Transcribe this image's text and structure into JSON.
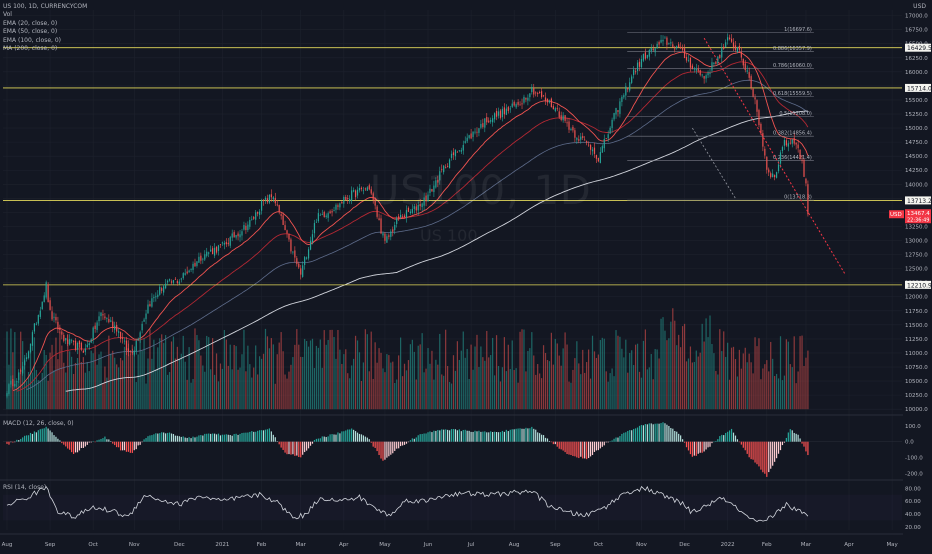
{
  "header": {
    "symbol_line": "US 100, 1D, CURRENCYCOM",
    "indicators": [
      "Vol",
      "EMA (20, close, 0)",
      "EMA (50, close, 0)",
      "EMA (100, close, 0)",
      "MA (200, close, 0)"
    ],
    "currency": "USD"
  },
  "watermark": {
    "main": "US100, 1D",
    "sub": "US 100"
  },
  "colors": {
    "background": "#131722",
    "up": "#26a69a",
    "down": "#ef5350",
    "ema20": "#ef5350",
    "ema50": "#b22833",
    "ema100": "#5d6b8a",
    "ma200": "#d1d4dc",
    "hline": "#e3d95b",
    "fib": "#787b86",
    "axis_text": "#b2b5be",
    "price_tag": "#f23645"
  },
  "chart_data": [
    {
      "type": "candlestick",
      "title": "US 100, 1D, CURRENCYCOM",
      "y_ticks": [
        17000,
        16750,
        16500,
        16250,
        16000,
        15750,
        15500,
        15250,
        15000,
        14750,
        14500,
        14250,
        14000,
        13750,
        13500,
        13250,
        13000,
        12750,
        12500,
        12250,
        12000,
        11750,
        11500,
        11250,
        11000,
        10750,
        10500,
        10250,
        10000
      ],
      "y_tick_labels": [
        "17000.0",
        "16750.0",
        "16500.0",
        "16250.0",
        "16000.0",
        "15750.0",
        "15500.0",
        "15250.0",
        "15000.0",
        "14750.0",
        "14500.0",
        "14250.0",
        "14000.0",
        "13750.0",
        "13500.0",
        "13250.0",
        "13000.0",
        "12750.0",
        "12500.0",
        "12250.0",
        "12000.0",
        "11750.0",
        "11500.0",
        "11250.0",
        "11000.0",
        "10750.0",
        "10500.0",
        "10250.0",
        "10000.0"
      ],
      "ylim": [
        9950,
        17100
      ],
      "x_ticks": [
        "Aug",
        "Sep",
        "Oct",
        "Nov",
        "Dec",
        "2021",
        "Feb",
        "Mar",
        "Apr",
        "May",
        "Jun",
        "Jul",
        "Aug",
        "Sep",
        "Oct",
        "Nov",
        "Dec",
        "2022",
        "Feb",
        "Mar",
        "Apr",
        "May"
      ],
      "x_tick_pos": [
        0,
        22,
        44,
        65,
        88,
        110,
        130,
        150,
        172,
        193,
        215,
        237,
        259,
        280,
        302,
        324,
        346,
        368,
        388,
        408,
        430,
        452
      ],
      "bars_range": [
        0,
        410
      ],
      "price_path": [
        [
          0,
          10350
        ],
        [
          8,
          10700
        ],
        [
          20,
          12200
        ],
        [
          22,
          11700
        ],
        [
          30,
          11200
        ],
        [
          40,
          11050
        ],
        [
          48,
          11700
        ],
        [
          56,
          11450
        ],
        [
          62,
          11000
        ],
        [
          65,
          11100
        ],
        [
          72,
          11850
        ],
        [
          80,
          12200
        ],
        [
          88,
          12300
        ],
        [
          100,
          12750
        ],
        [
          110,
          12900
        ],
        [
          125,
          13350
        ],
        [
          130,
          13650
        ],
        [
          136,
          13800
        ],
        [
          145,
          12850
        ],
        [
          150,
          12400
        ],
        [
          158,
          13400
        ],
        [
          168,
          13600
        ],
        [
          175,
          13800
        ],
        [
          185,
          13950
        ],
        [
          193,
          12950
        ],
        [
          200,
          13400
        ],
        [
          208,
          13550
        ],
        [
          215,
          13800
        ],
        [
          225,
          14400
        ],
        [
          235,
          14800
        ],
        [
          245,
          15150
        ],
        [
          255,
          15300
        ],
        [
          262,
          15450
        ],
        [
          268,
          15700
        ],
        [
          275,
          15500
        ],
        [
          280,
          15350
        ],
        [
          290,
          14900
        ],
        [
          300,
          14600
        ],
        [
          302,
          14450
        ],
        [
          310,
          15200
        ],
        [
          320,
          16000
        ],
        [
          326,
          16300
        ],
        [
          336,
          16550
        ],
        [
          342,
          16450
        ],
        [
          350,
          16100
        ],
        [
          356,
          15900
        ],
        [
          362,
          16200
        ],
        [
          368,
          16550
        ],
        [
          374,
          16400
        ],
        [
          382,
          15500
        ],
        [
          388,
          14300
        ],
        [
          392,
          14100
        ],
        [
          396,
          14700
        ],
        [
          402,
          14800
        ],
        [
          406,
          14400
        ],
        [
          410,
          13500
        ]
      ],
      "last_price": 13467.4,
      "last_price_label": "13467.4",
      "countdown_label": "22:36:49",
      "price_tag_label": "USD",
      "horizontal_levels": [
        {
          "value": 16429.5,
          "label": "16429.5"
        },
        {
          "value": 15714.0,
          "label": "15714.0"
        },
        {
          "value": 13713.2,
          "label": "13713.2"
        },
        {
          "value": 12210.9,
          "label": "12210.9"
        }
      ],
      "fib_levels": [
        {
          "ratio": "1",
          "value": 16697.6,
          "label": "1(16697.6)"
        },
        {
          "ratio": "0.886",
          "value": 16357.9,
          "label": "0.886(16357.9)"
        },
        {
          "ratio": "0.786",
          "value": 16060.0,
          "label": "0.786(16060.0)"
        },
        {
          "ratio": "0.618",
          "value": 15559.5,
          "label": "0.618(15559.5)"
        },
        {
          "ratio": "0.5",
          "value": 15208.0,
          "label": "0.5(15208.0)"
        },
        {
          "ratio": "0.382",
          "value": 14856.4,
          "label": "0.382(14856.4)"
        },
        {
          "ratio": "0.236",
          "value": 14421.4,
          "label": "0.236(14421.4)"
        },
        {
          "ratio": "0",
          "value": 13718.3,
          "label": "0(13718.3)"
        }
      ],
      "fib_x_range": [
        378,
        410
      ],
      "trendline": {
        "from": [
          356,
          16600
        ],
        "to": [
          428,
          12400
        ]
      },
      "channel_line": {
        "from": [
          350,
          15000
        ],
        "to": [
          372,
          13750
        ]
      },
      "volume_present": true
    },
    {
      "type": "histogram",
      "title": "MACD (12, 26, close, 0)",
      "y_ticks": [
        100.0,
        0.0,
        -100.0,
        -200.0
      ],
      "y_tick_labels": [
        "100.0",
        "0.0",
        "-100.0",
        "-200.0"
      ],
      "ylim": [
        -230,
        150
      ],
      "profile": [
        [
          0,
          -20
        ],
        [
          10,
          40
        ],
        [
          20,
          90
        ],
        [
          26,
          20
        ],
        [
          34,
          -80
        ],
        [
          42,
          -10
        ],
        [
          50,
          30
        ],
        [
          58,
          -50
        ],
        [
          64,
          -70
        ],
        [
          72,
          40
        ],
        [
          82,
          60
        ],
        [
          92,
          20
        ],
        [
          102,
          50
        ],
        [
          114,
          40
        ],
        [
          124,
          60
        ],
        [
          134,
          80
        ],
        [
          142,
          -70
        ],
        [
          150,
          -100
        ],
        [
          158,
          20
        ],
        [
          168,
          50
        ],
        [
          176,
          80
        ],
        [
          184,
          30
        ],
        [
          192,
          -120
        ],
        [
          200,
          -40
        ],
        [
          210,
          40
        ],
        [
          222,
          80
        ],
        [
          234,
          70
        ],
        [
          246,
          60
        ],
        [
          256,
          70
        ],
        [
          268,
          90
        ],
        [
          276,
          20
        ],
        [
          286,
          -80
        ],
        [
          296,
          -110
        ],
        [
          306,
          -10
        ],
        [
          316,
          60
        ],
        [
          326,
          110
        ],
        [
          336,
          120
        ],
        [
          344,
          40
        ],
        [
          350,
          -100
        ],
        [
          356,
          -60
        ],
        [
          364,
          30
        ],
        [
          370,
          80
        ],
        [
          378,
          -80
        ],
        [
          384,
          -160
        ],
        [
          388,
          -220
        ],
        [
          394,
          -80
        ],
        [
          400,
          80
        ],
        [
          404,
          40
        ],
        [
          410,
          -110
        ]
      ]
    },
    {
      "type": "line",
      "title": "RSI (14, close)",
      "y_ticks": [
        80.0,
        60.0,
        40.0,
        20.0
      ],
      "y_tick_labels": [
        "80.00",
        "60.00",
        "40.00",
        "20.00"
      ],
      "ylim": [
        15,
        90
      ],
      "profile": [
        [
          0,
          55
        ],
        [
          10,
          65
        ],
        [
          20,
          82
        ],
        [
          26,
          45
        ],
        [
          34,
          35
        ],
        [
          44,
          50
        ],
        [
          54,
          45
        ],
        [
          62,
          35
        ],
        [
          70,
          70
        ],
        [
          78,
          62
        ],
        [
          88,
          55
        ],
        [
          98,
          68
        ],
        [
          110,
          60
        ],
        [
          120,
          66
        ],
        [
          130,
          70
        ],
        [
          138,
          58
        ],
        [
          146,
          35
        ],
        [
          152,
          38
        ],
        [
          160,
          66
        ],
        [
          170,
          60
        ],
        [
          180,
          66
        ],
        [
          190,
          45
        ],
        [
          196,
          38
        ],
        [
          204,
          62
        ],
        [
          214,
          60
        ],
        [
          224,
          70
        ],
        [
          236,
          72
        ],
        [
          246,
          70
        ],
        [
          258,
          73
        ],
        [
          268,
          76
        ],
        [
          276,
          55
        ],
        [
          286,
          42
        ],
        [
          296,
          38
        ],
        [
          306,
          52
        ],
        [
          316,
          74
        ],
        [
          326,
          80
        ],
        [
          334,
          70
        ],
        [
          344,
          58
        ],
        [
          350,
          42
        ],
        [
          358,
          55
        ],
        [
          366,
          65
        ],
        [
          374,
          45
        ],
        [
          380,
          30
        ],
        [
          386,
          26
        ],
        [
          392,
          40
        ],
        [
          398,
          55
        ],
        [
          404,
          45
        ],
        [
          410,
          34
        ]
      ]
    }
  ]
}
